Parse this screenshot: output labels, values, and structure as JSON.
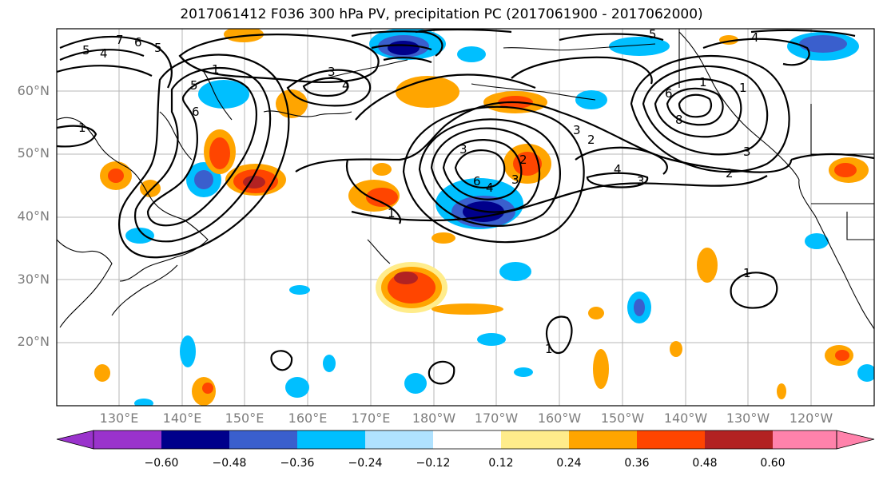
{
  "title": "2017061412 F036 300 hPa PV, precipitation PC (2017061900 - 2017062000)",
  "lat_labels": [
    "60°N",
    "50°N",
    "40°N",
    "30°N",
    "20°N"
  ],
  "lon_labels": [
    "130°E",
    "140°E",
    "150°E",
    "160°E",
    "170°E",
    "180°W",
    "170°W",
    "160°W",
    "150°W",
    "140°W",
    "130°W",
    "120°W"
  ],
  "colorbar": {
    "labels": [
      "−0.60",
      "−0.48",
      "−0.36",
      "−0.24",
      "−0.12",
      "0.12",
      "0.24",
      "0.36",
      "0.48",
      "0.60"
    ],
    "colors": [
      "#9a33cc",
      "#00008b",
      "#3a5fcd",
      "#00bfff",
      "#b0e2ff",
      "#ffffff",
      "#ffec8b",
      "#ffa500",
      "#ff4500",
      "#b22222",
      "#ff82ab"
    ]
  },
  "contour_labels": [
    "7",
    "6",
    "5",
    "5",
    "4",
    "1",
    "5",
    "6",
    "3",
    "4",
    "1",
    "1",
    "3",
    "5",
    "4",
    "1",
    "1",
    "6",
    "8",
    "2",
    "3",
    "3",
    "2",
    "3",
    "2",
    "4",
    "3",
    "4",
    "6",
    "1",
    "1"
  ],
  "colors": {
    "gridline": "#9a9a9a",
    "contour": "#000000",
    "axis_text": "#7d7d7d"
  }
}
